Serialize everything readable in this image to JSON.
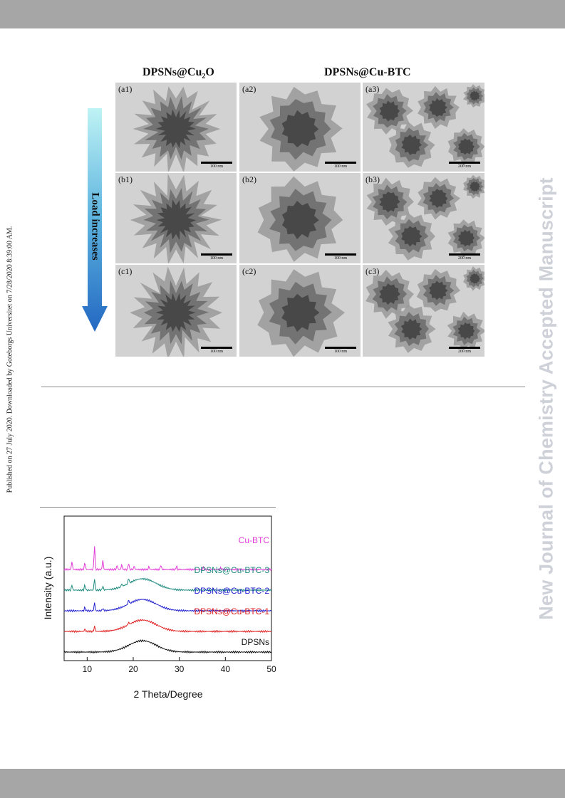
{
  "side_text_left": "Published on 27 July 2020. Downloaded by Goteborgs Universitet on 7/28/2020 8:39:00 AM.",
  "side_text_right": "New Journal of Chemistry Accepted Manuscript",
  "figure": {
    "heading_left_base": "DPSNs@Cu",
    "heading_left_sub": "2",
    "heading_left_tail": "O",
    "heading_right": "DPSNs@Cu-BTC",
    "arrow_label": "Load increases",
    "panels": [
      {
        "label": "(a1)",
        "scale": "100 nm"
      },
      {
        "label": "(a2)",
        "scale": "100 nm"
      },
      {
        "label": "(a3)",
        "scale": "200 nm"
      },
      {
        "label": "(b1)",
        "scale": "100 nm"
      },
      {
        "label": "(b2)",
        "scale": "100 nm"
      },
      {
        "label": "(b3)",
        "scale": "200 nm"
      },
      {
        "label": "(c1)",
        "scale": "100 nm"
      },
      {
        "label": "(c2)",
        "scale": "100 nm"
      },
      {
        "label": "(c3)",
        "scale": "200 nm"
      }
    ]
  },
  "chart_data": {
    "type": "line",
    "title": "",
    "xlabel": "2 Theta/Degree",
    "ylabel": "Intensity (a.u.)",
    "xlim": [
      5,
      50
    ],
    "xticks": [
      10,
      20,
      30,
      40,
      50
    ],
    "yticks": false,
    "grid": false,
    "legend": "series labels placed at right end of each curve",
    "series": [
      {
        "name": "Cu-BTC",
        "color": "#e23ad6",
        "offset": 4,
        "hump": 0.0,
        "peaks": [
          [
            6.7,
            0.7
          ],
          [
            9.5,
            0.6
          ],
          [
            11.6,
            2.1
          ],
          [
            13.4,
            0.8
          ],
          [
            16.5,
            0.35
          ],
          [
            17.5,
            0.4
          ],
          [
            19.0,
            0.55
          ],
          [
            20.2,
            0.3
          ],
          [
            23.4,
            0.25
          ],
          [
            26.0,
            0.4
          ],
          [
            29.4,
            0.3
          ],
          [
            35.2,
            0.2
          ],
          [
            39.0,
            0.15
          ]
        ]
      },
      {
        "name": "DPSNs@Cu-BTC-3",
        "color": "#1e8a7e",
        "offset": 3,
        "hump": 1.0,
        "peaks": [
          [
            6.7,
            0.45
          ],
          [
            9.5,
            0.45
          ],
          [
            11.6,
            1.0
          ],
          [
            13.4,
            0.35
          ],
          [
            17.5,
            0.25
          ],
          [
            19.0,
            0.45
          ]
        ]
      },
      {
        "name": "DPSNs@Cu-BTC-2",
        "color": "#2222d0",
        "offset": 2,
        "hump": 1.0,
        "peaks": [
          [
            9.5,
            0.3
          ],
          [
            11.6,
            0.7
          ],
          [
            13.4,
            0.2
          ],
          [
            19.0,
            0.35
          ]
        ]
      },
      {
        "name": "DPSNs@Cu-BTC-1",
        "color": "#e02020",
        "offset": 1,
        "hump": 1.0,
        "peaks": [
          [
            9.5,
            0.2
          ],
          [
            11.6,
            0.45
          ],
          [
            19.0,
            0.2
          ]
        ]
      },
      {
        "name": "DPSNs",
        "color": "#111111",
        "offset": 0,
        "hump": 1.0,
        "peaks": []
      }
    ]
  }
}
